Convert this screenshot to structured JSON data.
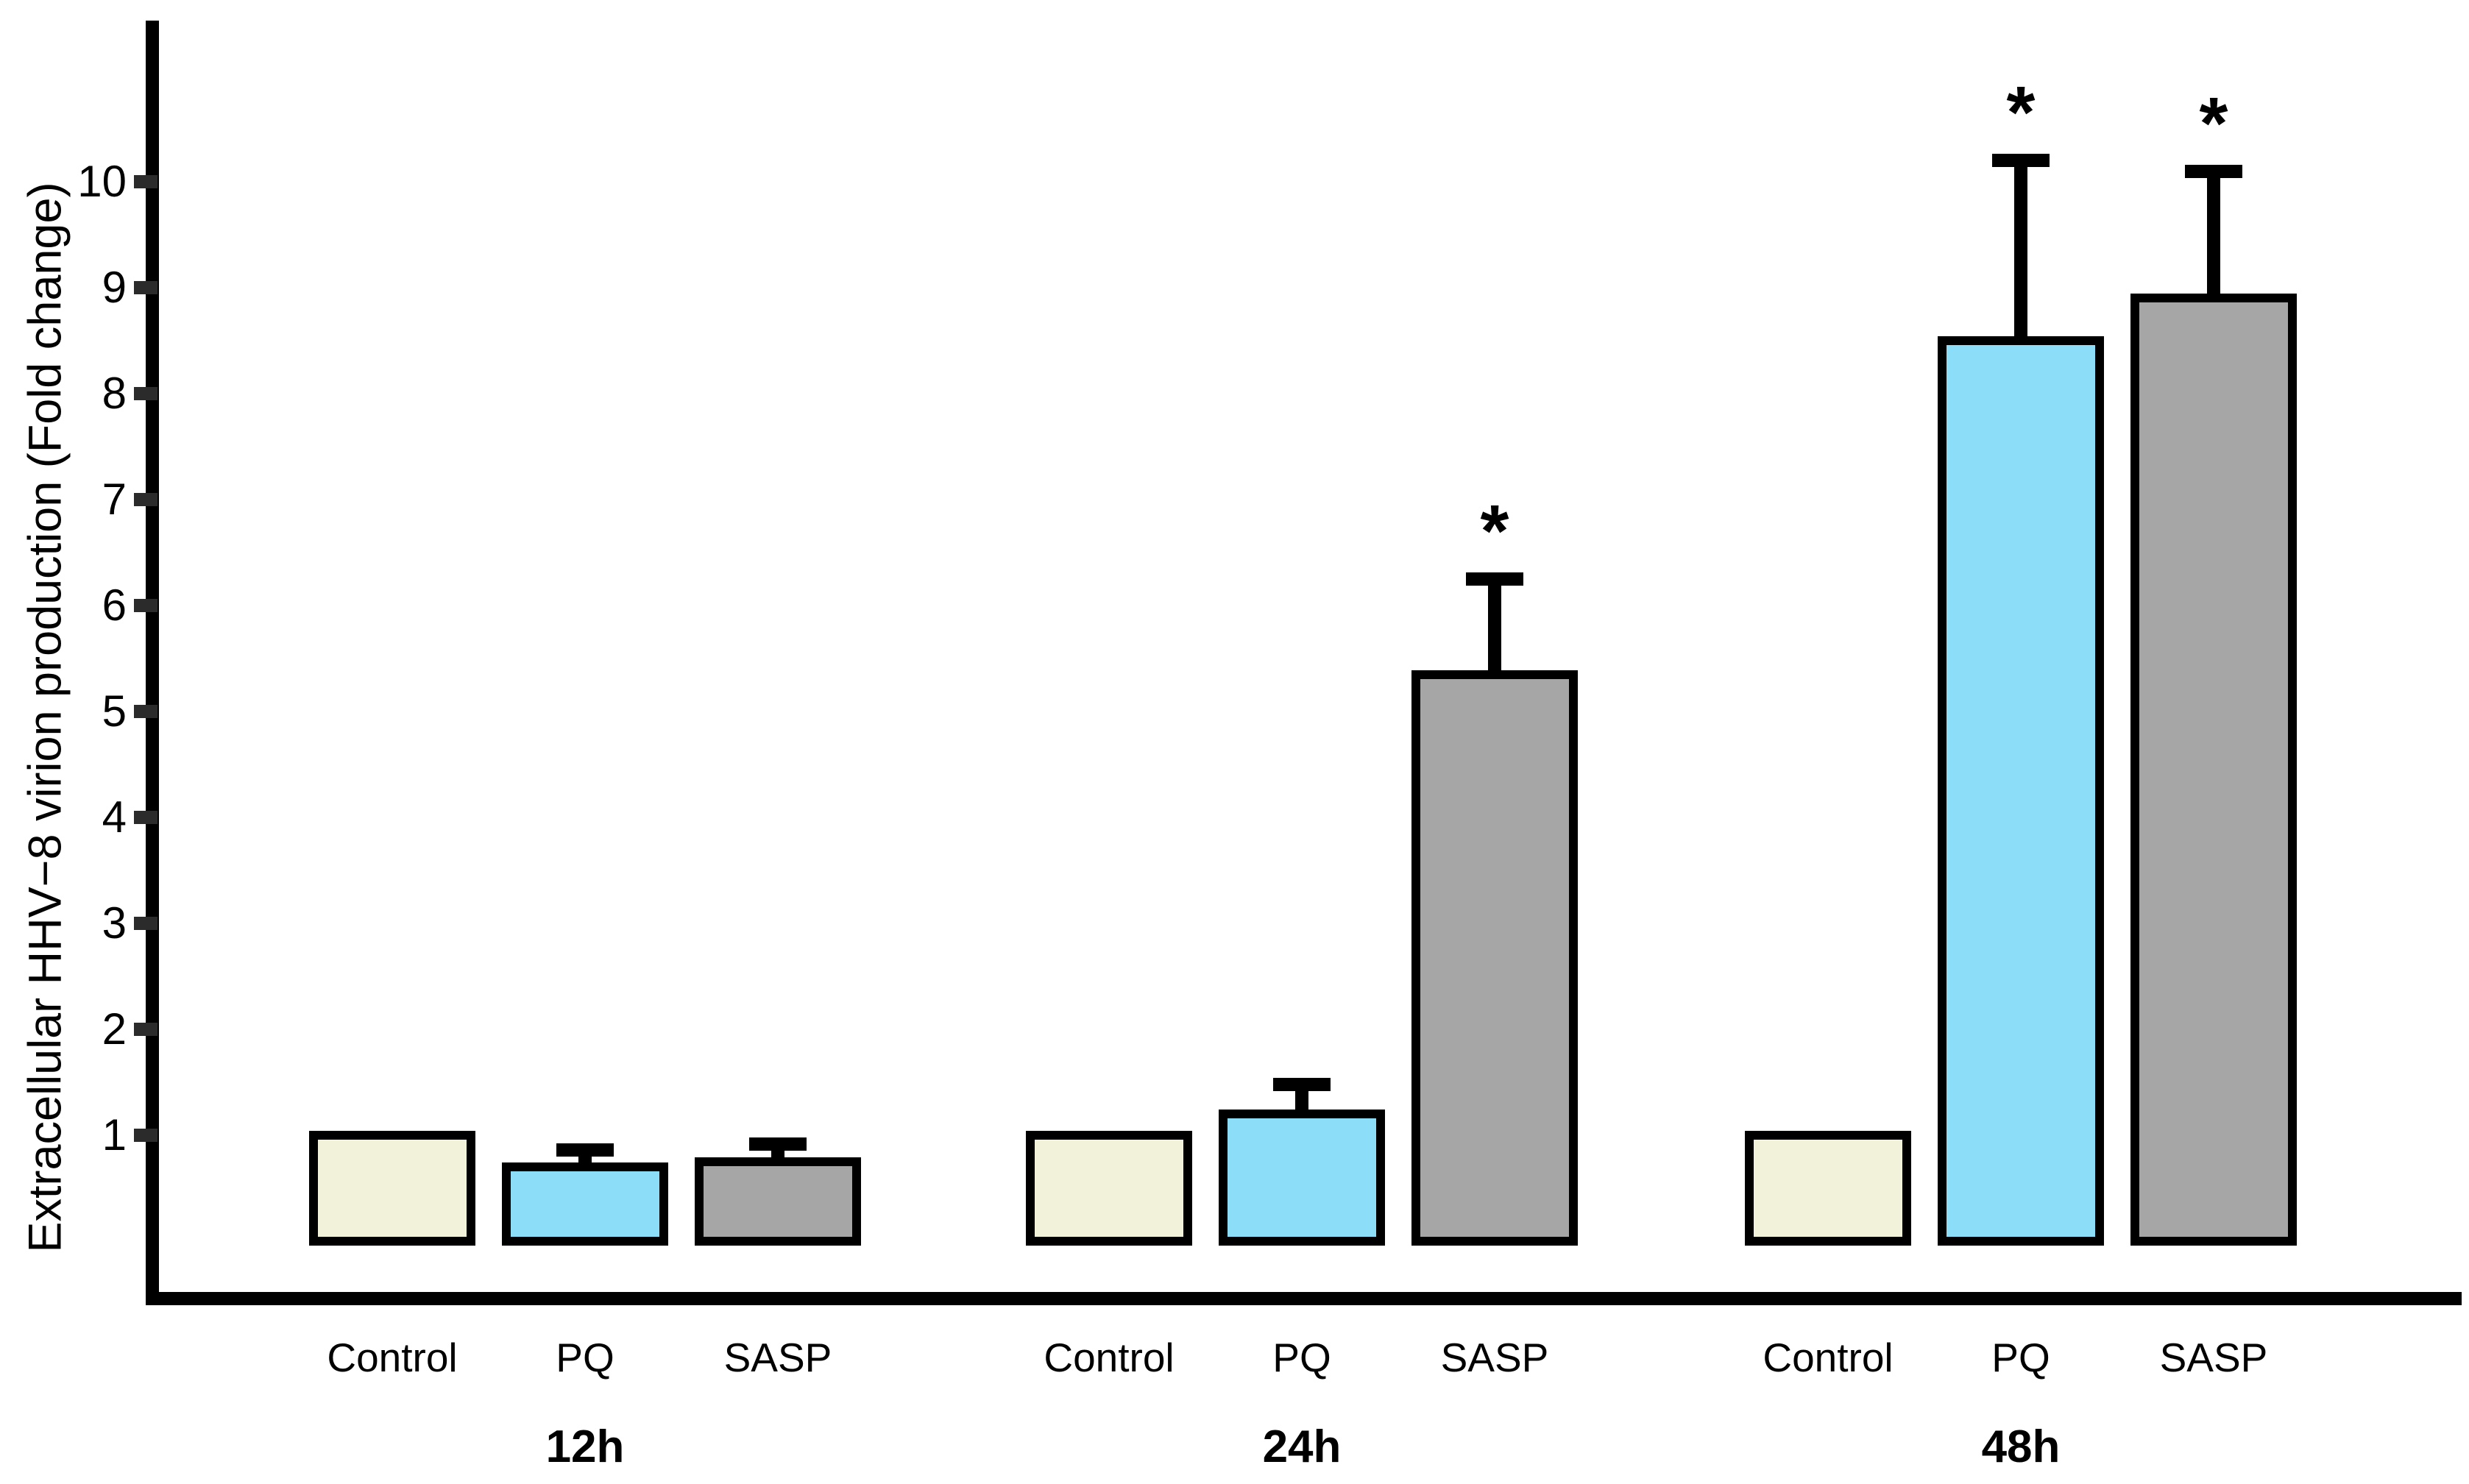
{
  "figure": {
    "background": "#FFFFFF",
    "significance_symbol": "*"
  },
  "chart_data": {
    "type": "bar",
    "title": "",
    "xlabel": "",
    "ylabel": "Extracellular HHV−8 virion production (Fold change)",
    "ylim": [
      0,
      11.5
    ],
    "yticks": [
      1,
      2,
      3,
      4,
      5,
      6,
      7,
      8,
      9,
      10
    ],
    "grid": false,
    "legend": "none",
    "error_bars": "upper only, cap style T",
    "conditions": [
      "Control",
      "PQ",
      "SASP"
    ],
    "colors": {
      "Control": "#F2F2DA",
      "PQ": "#8CDEF8",
      "SASP": "#A6A6A6",
      "outline": "#000000",
      "axis": "#000000"
    },
    "groups": [
      {
        "label": "12h",
        "bars": [
          {
            "condition": "Control",
            "value": 1.0,
            "error": null,
            "significant": false
          },
          {
            "condition": "PQ",
            "value": 0.7,
            "error": 0.16,
            "significant": false
          },
          {
            "condition": "SASP",
            "value": 0.75,
            "error": 0.17,
            "significant": false
          }
        ]
      },
      {
        "label": "24h",
        "bars": [
          {
            "condition": "Control",
            "value": 1.0,
            "error": null,
            "significant": false
          },
          {
            "condition": "PQ",
            "value": 1.2,
            "error": 0.28,
            "significant": false
          },
          {
            "condition": "SASP",
            "value": 5.35,
            "error": 0.9,
            "significant": true
          }
        ]
      },
      {
        "label": "48h",
        "bars": [
          {
            "condition": "Control",
            "value": 1.0,
            "error": null,
            "significant": false
          },
          {
            "condition": "PQ",
            "value": 8.5,
            "error": 1.7,
            "significant": true
          },
          {
            "condition": "SASP",
            "value": 8.9,
            "error": 1.2,
            "significant": true
          }
        ]
      }
    ]
  }
}
